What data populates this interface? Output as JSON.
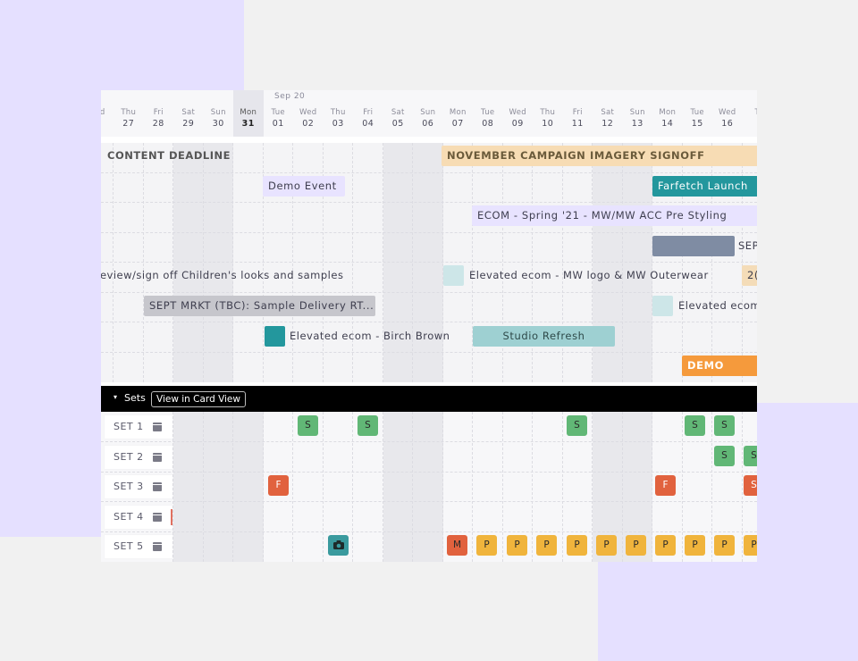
{
  "header": {
    "month_label": "Sep 20",
    "days": [
      {
        "name": "d",
        "num": ""
      },
      {
        "name": "Thu",
        "num": "27"
      },
      {
        "name": "Fri",
        "num": "28"
      },
      {
        "name": "Sat",
        "num": "29"
      },
      {
        "name": "Sun",
        "num": "30"
      },
      {
        "name": "Mon",
        "num": "31"
      },
      {
        "name": "Tue",
        "num": "01"
      },
      {
        "name": "Wed",
        "num": "02"
      },
      {
        "name": "Thu",
        "num": "03"
      },
      {
        "name": "Fri",
        "num": "04"
      },
      {
        "name": "Sat",
        "num": "05"
      },
      {
        "name": "Sun",
        "num": "06"
      },
      {
        "name": "Mon",
        "num": "07"
      },
      {
        "name": "Tue",
        "num": "08"
      },
      {
        "name": "Wed",
        "num": "09"
      },
      {
        "name": "Thu",
        "num": "10"
      },
      {
        "name": "Fri",
        "num": "11"
      },
      {
        "name": "Sat",
        "num": "12"
      },
      {
        "name": "Sun",
        "num": "13"
      },
      {
        "name": "Mon",
        "num": "14"
      },
      {
        "name": "Tue",
        "num": "15"
      },
      {
        "name": "Wed",
        "num": "16"
      },
      {
        "name": "T",
        "num": ""
      }
    ]
  },
  "events": {
    "content_deadline": "CONTENT DEADLINE",
    "november_signoff": "NOVEMBER CAMPAIGN IMAGERY SIGNOFF",
    "demo_event": "Demo Event",
    "farfetch_launch": "Farfetch Launch",
    "ecom_spring": "ECOM - Spring '21 - MW/MW ACC Pre Styling",
    "sept_short": "SEP",
    "review_children": "review/sign off Children's looks and samples",
    "elevated_mw": "Elevated ecom - MW logo & MW Outerwear",
    "twenty": "2(",
    "sept_mrkt": "SEPT MRKT (TBC): Sample Delivery RT...",
    "elevated_ecom_cut": "Elevated ecom",
    "elevated_birch": "Elevated ecom - Birch Brown",
    "studio_refresh": "Studio Refresh",
    "demo": "DEMO"
  },
  "sets_bar": {
    "caret": "▾",
    "label": "Sets",
    "card_view_button": "View in Card View"
  },
  "sets": [
    {
      "label": "SET 1"
    },
    {
      "label": "SET 2"
    },
    {
      "label": "SET 3"
    },
    {
      "label": "SET 4"
    },
    {
      "label": "SET 5"
    }
  ],
  "tiles": {
    "s": "S",
    "f": "F",
    "m": "M",
    "p": "P",
    "camera_icon": "camera-icon"
  },
  "colors": {
    "accent_purple_bg": "#e5e0ff",
    "teal": "#2b9aa0",
    "orange": "#f59a3c",
    "green_tile": "#61b776",
    "red_tile": "#e1623e",
    "yellow_tile": "#f0b43c"
  }
}
